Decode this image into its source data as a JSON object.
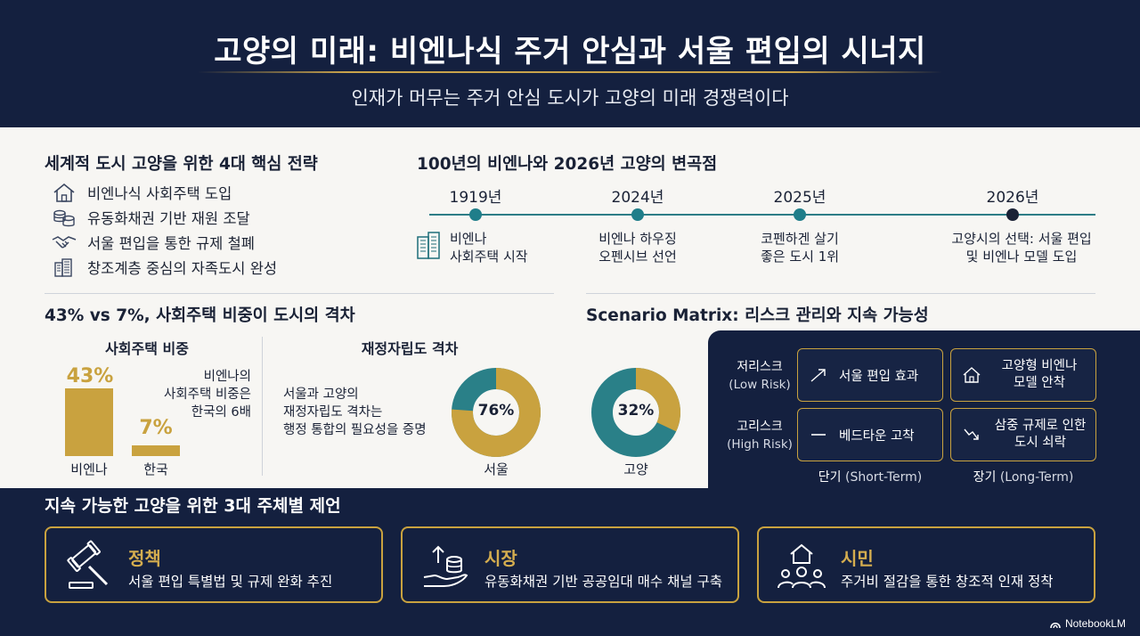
{
  "header": {
    "title": "고양의 미래: 비엔나식 주거 안심과 서울 편입의 시너지",
    "subtitle": "인재가 머무는 주거 안심 도시가 고양의 미래 경쟁력이다"
  },
  "strategies": {
    "title": "세계적 도시 고양을 위한 4대 핵심 전략",
    "items": [
      {
        "label": "비엔나식 사회주택 도입",
        "icon": "house-icon"
      },
      {
        "label": "유동화채권 기반 재원 조달",
        "icon": "coins-icon"
      },
      {
        "label": "서울 편입을 통한 규제 철폐",
        "icon": "handshake-icon"
      },
      {
        "label": "창조계층 중심의 자족도시 완성",
        "icon": "buildings-icon"
      }
    ]
  },
  "timeline": {
    "title": "100년의 비엔나와 2026년 고양의 변곡점",
    "events": [
      {
        "year": "1919년",
        "line1": "비엔나",
        "line2": "사회주택 시작"
      },
      {
        "year": "2024년",
        "line1": "비엔나 하우징",
        "line2": "오펜시브 선언"
      },
      {
        "year": "2025년",
        "line1": "코펜하겐 살기",
        "line2": "좋은 도시 1위"
      },
      {
        "year": "2026년",
        "line1": "고양시의 선택: 서울 편입",
        "line2": "및 비엔나 모델 도입"
      }
    ],
    "colors": {
      "line": "#2d7d86",
      "dot": "#1f7e8a",
      "last_dot": "#1a2236"
    }
  },
  "gap": {
    "title": "43% vs 7%, 사회주택 비중이 도시의 격차",
    "social_housing": {
      "subtitle": "사회주택 비중",
      "bars": [
        {
          "label": "비엔나",
          "value": 43,
          "display": "43%"
        },
        {
          "label": "한국",
          "value": 7,
          "display": "7%"
        }
      ],
      "note": [
        "비엔나의",
        "사회주택 비중은",
        "한국의 6배"
      ]
    },
    "fiscal": {
      "subtitle": "재정자립도 격차",
      "note": [
        "서울과 고양의",
        "재정자립도 격차는",
        "행정 통합의 필요성을 증명"
      ],
      "donuts": [
        {
          "label": "서울",
          "value": 76,
          "display": "76%",
          "fill_color": "#c9a23f",
          "rest_color": "#2a8088"
        },
        {
          "label": "고양",
          "value": 32,
          "display": "32%",
          "fill_color": "#c9a23f",
          "rest_color": "#2a8088"
        }
      ]
    }
  },
  "matrix": {
    "title": "Scenario Matrix: 리스크 관리와 지속 가능성",
    "rows": [
      {
        "ko": "저리스크",
        "en": "(Low Risk)"
      },
      {
        "ko": "고리스크",
        "en": "(High Risk)"
      }
    ],
    "cols": [
      {
        "ko": "단기",
        "en": "(Short-Term)"
      },
      {
        "ko": "장기",
        "en": "(Long-Term)"
      }
    ],
    "cells": [
      {
        "lines": [
          "서울 편입 효과"
        ],
        "icon": "trend-up-icon"
      },
      {
        "lines": [
          "고양형 비엔나",
          "모델 안착"
        ],
        "icon": "house-outline-icon"
      },
      {
        "lines": [
          "베드타운 고착"
        ],
        "icon": "flat-line-icon"
      },
      {
        "lines": [
          "삼중 규제로 인한",
          "도시 쇠락"
        ],
        "icon": "trend-down-icon"
      }
    ]
  },
  "proposals": {
    "title": "지속 가능한 고양을 위한 3대 주체별 제언",
    "items": [
      {
        "title": "정책",
        "desc": "서울 편입 특별법 및 규제 완화 추진",
        "icon": "gavel-icon"
      },
      {
        "title": "시장",
        "desc": "유동화채권 기반 공공임대 매수 채널 구축",
        "icon": "growth-hand-icon"
      },
      {
        "title": "시민",
        "desc": "주거비 절감을 통한 창조적 인재 정착",
        "icon": "community-icon"
      }
    ]
  },
  "footer": {
    "brand": "NotebookLM"
  },
  "colors": {
    "navy": "#14203f",
    "gold": "#c9a23f",
    "teal": "#2a8088",
    "panel": "#f7f6f3"
  }
}
